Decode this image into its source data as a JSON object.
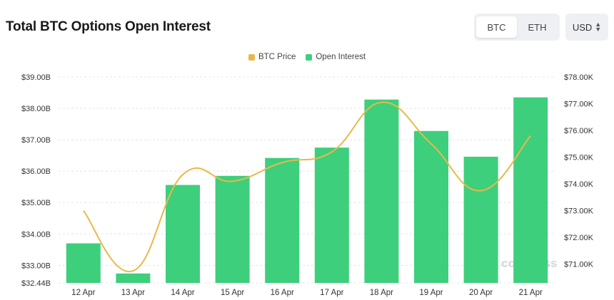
{
  "header": {
    "title": "Total BTC Options Open Interest"
  },
  "asset_toggle": {
    "options": [
      "BTC",
      "ETH"
    ],
    "selected": "BTC"
  },
  "currency": {
    "selected": "USD"
  },
  "watermark": "coinglass",
  "colors": {
    "oi": "#3ecf7c",
    "price": "#e8b94a",
    "grid": "#e3e5e8"
  },
  "chart_data": {
    "type": "bar",
    "title": "Total BTC Options Open Interest",
    "legend_position": "top-center",
    "categories": [
      "12 Apr",
      "13 Apr",
      "14 Apr",
      "15 Apr",
      "16 Apr",
      "17 Apr",
      "18 Apr",
      "19 Apr",
      "20 Apr",
      "21 Apr"
    ],
    "series": [
      {
        "name": "BTC Price",
        "type": "line",
        "axis": "right",
        "values": [
          73000,
          70750,
          74350,
          74100,
          74800,
          75200,
          77050,
          75500,
          73750,
          75800
        ]
      },
      {
        "name": "Open Interest",
        "type": "bar",
        "axis": "left",
        "values": [
          33.7,
          32.74,
          35.56,
          35.85,
          36.42,
          36.75,
          38.28,
          37.28,
          36.46,
          38.35
        ]
      }
    ],
    "y_left": {
      "ticks": [
        "$39.00B",
        "$38.00B",
        "$37.00B",
        "$36.00B",
        "$35.00B",
        "$34.00B",
        "$33.00B",
        "$32.44B"
      ],
      "tick_values": [
        39,
        38,
        37,
        36,
        35,
        34,
        33,
        32.44
      ],
      "range": [
        32.44,
        39.0
      ]
    },
    "y_right": {
      "ticks": [
        "$78.00K",
        "$77.00K",
        "$76.00K",
        "$75.00K",
        "$74.00K",
        "$73.00K",
        "$72.00K",
        "$71.00K"
      ],
      "tick_values": [
        78000,
        77000,
        76000,
        75000,
        74000,
        73000,
        72000,
        71000
      ],
      "range": [
        70300,
        78000
      ]
    },
    "grid": true
  }
}
